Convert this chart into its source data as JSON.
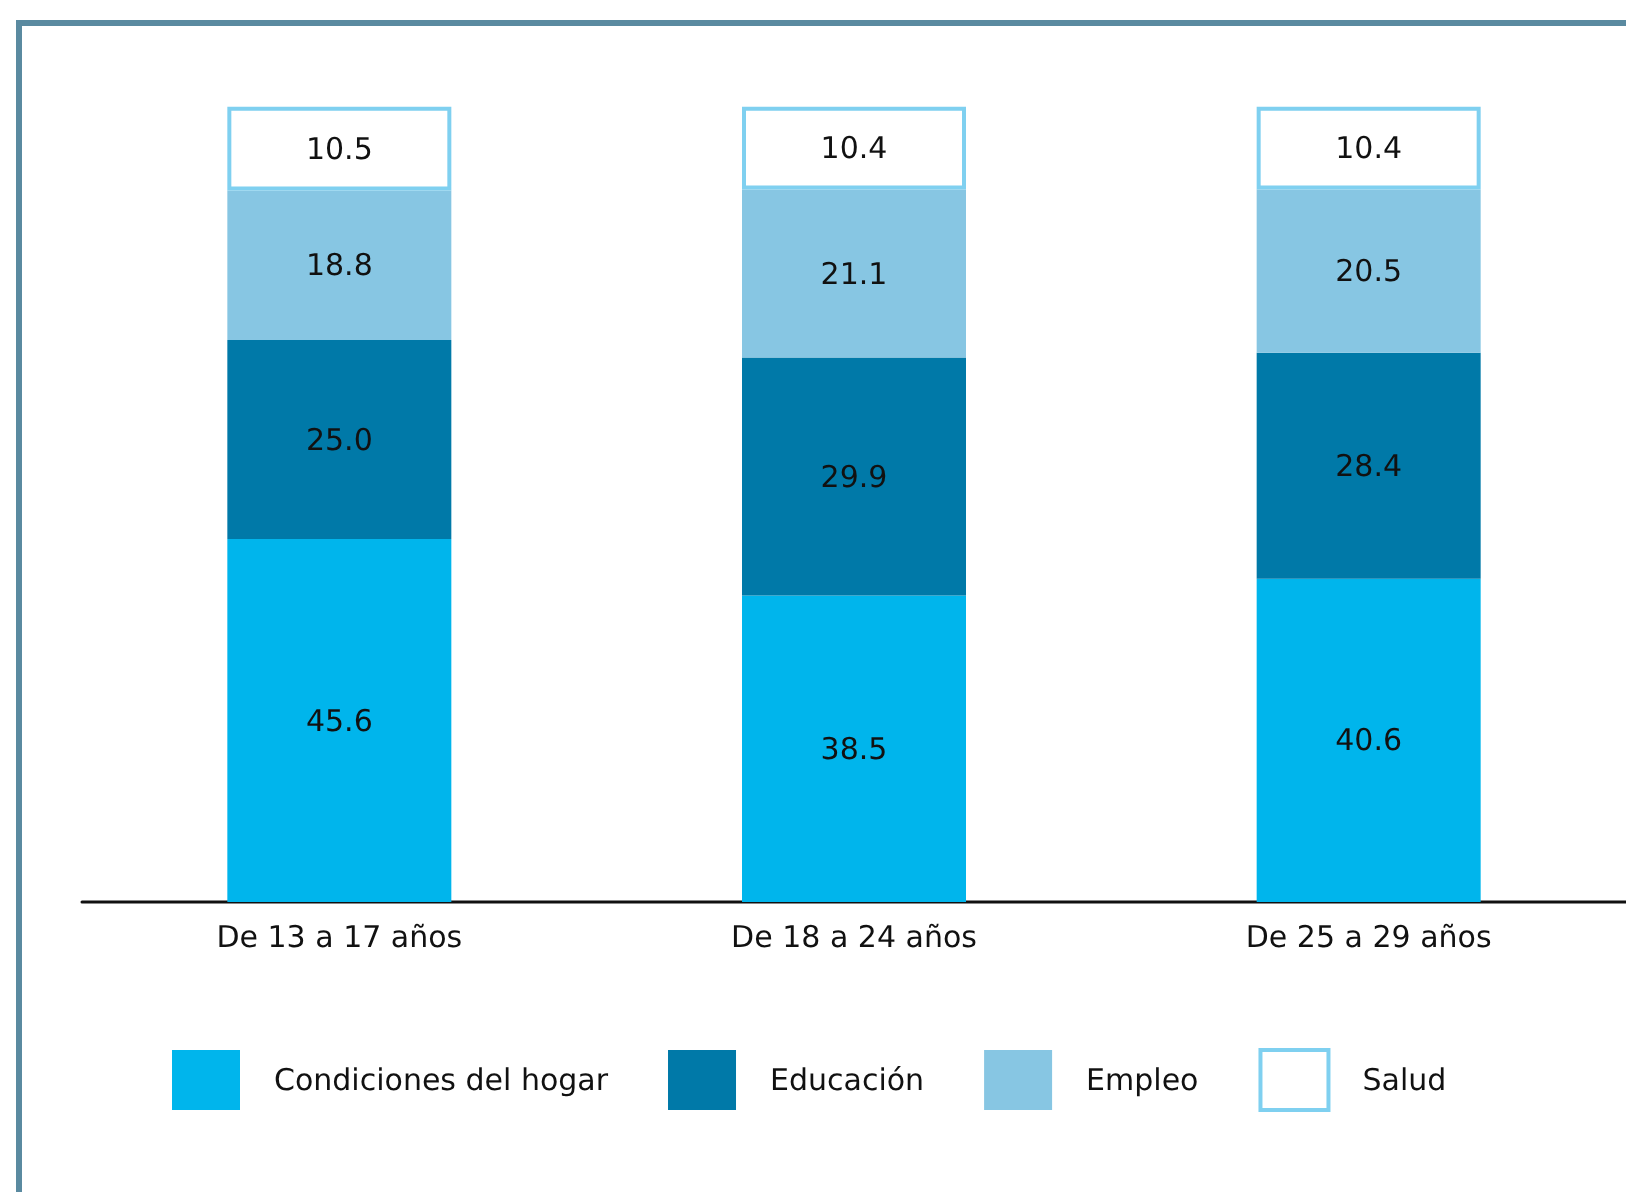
{
  "chart_data": {
    "type": "bar",
    "stacked": true,
    "data_labels": true,
    "legend": "bottom",
    "grid": false,
    "categories": [
      "De 13 a 17 años",
      "De 18 a 24 años",
      "De 25 a 29 años"
    ],
    "series": [
      {
        "name": "Condiciones del hogar",
        "color": "#00b5ec",
        "values": [
          45.6,
          38.5,
          40.6
        ]
      },
      {
        "name": "Educación",
        "color": "#0079a8",
        "values": [
          25.0,
          29.9,
          28.4
        ],
        "value_labels": [
          "25.0",
          "29.9",
          "28.4"
        ]
      },
      {
        "name": "Empleo",
        "color": "#87c6e3",
        "values": [
          18.8,
          21.1,
          20.5
        ]
      },
      {
        "name": "Salud",
        "color": "#ffffff",
        "values": [
          10.5,
          10.4,
          10.4
        ]
      }
    ]
  }
}
